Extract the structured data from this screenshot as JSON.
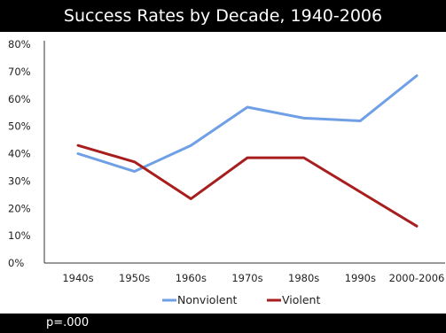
{
  "chart_data": {
    "type": "line",
    "title": "Success Rates by Decade, 1940-2006",
    "categories": [
      "1940s",
      "1950s",
      "1960s",
      "1970s",
      "1980s",
      "1990s",
      "2000-2006"
    ],
    "y_ticks": [
      "0%",
      "10%",
      "20%",
      "30%",
      "40%",
      "50%",
      "60%",
      "70%",
      "80%"
    ],
    "ylim": [
      0,
      80
    ],
    "legend_position": "bottom",
    "series": [
      {
        "name": "Nonviolent",
        "color": "#6f9fe6",
        "values": [
          40,
          33.5,
          43,
          57,
          53,
          52,
          68.5
        ]
      },
      {
        "name": "Violent",
        "color": "#a81e1e",
        "values": [
          43,
          37,
          23.5,
          38.5,
          38.5,
          26,
          13.5
        ]
      }
    ]
  },
  "footer": {
    "note": "p=.000"
  }
}
